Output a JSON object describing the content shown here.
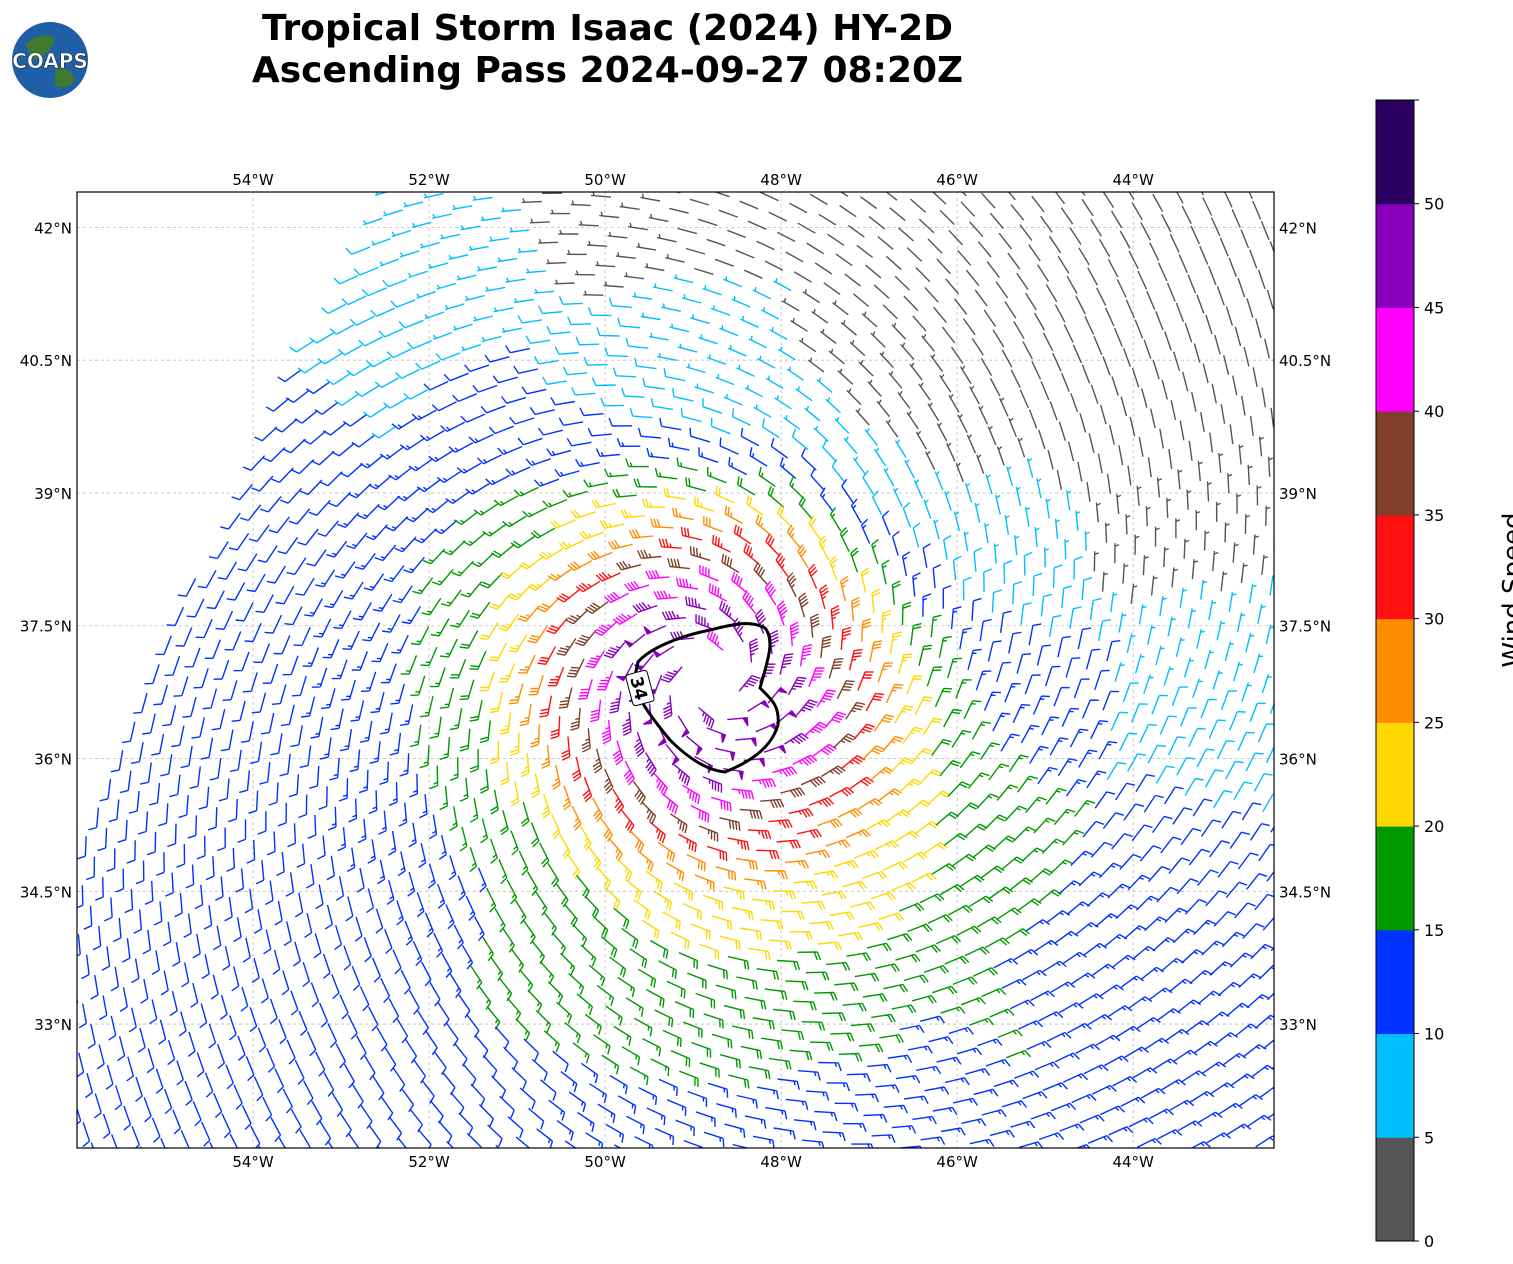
{
  "logo": {
    "text": "COAPS"
  },
  "title": {
    "line1": "Tropical Storm Isaac (2024) HY-2D",
    "line2": "Ascending Pass 2024-09-27 08:20Z"
  },
  "map": {
    "lon_ticks": [
      "54°W",
      "52°W",
      "50°W",
      "48°W",
      "46°W",
      "44°W"
    ],
    "lat_ticks": [
      "42°N",
      "40.5°N",
      "39°N",
      "37.5°N",
      "36°N",
      "34.5°N",
      "33°N"
    ],
    "extent": {
      "lon_min": -56.0,
      "lon_max": -42.4,
      "lat_min": 31.6,
      "lat_max": 42.4
    },
    "gridlines": true,
    "storm_center": {
      "lon": -48.8,
      "lat": 36.9
    },
    "contour_label": "34"
  },
  "colorbar": {
    "label": "Wind Speed (knots)",
    "ticks": [
      "0",
      "5",
      "10",
      "15",
      "20",
      "25",
      "30",
      "35",
      "40",
      "45",
      "50"
    ],
    "bins": [
      0,
      5,
      10,
      15,
      20,
      25,
      30,
      35,
      40,
      45,
      50,
      55
    ],
    "colors": [
      "#555555",
      "#00bfff",
      "#0033ff",
      "#009900",
      "#ffd700",
      "#ff8c00",
      "#ff1010",
      "#7f3f2a",
      "#ff00ff",
      "#8800bb",
      "#2a0060"
    ]
  }
}
